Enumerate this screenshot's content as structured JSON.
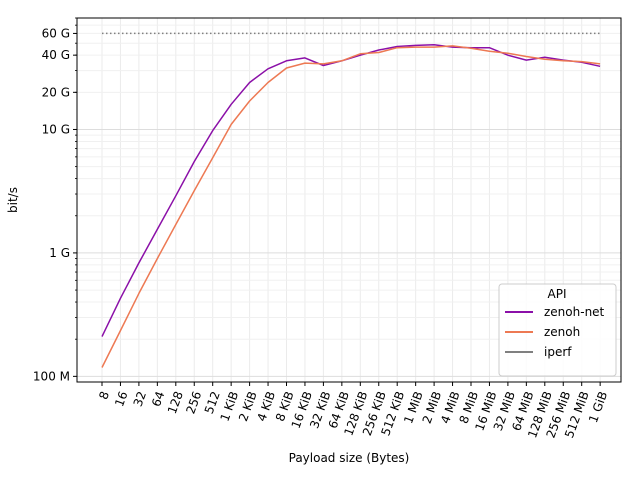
{
  "chart_data": {
    "type": "line",
    "xlabel": "Payload size (Bytes)",
    "ylabel": "bit/s",
    "yscale": "log",
    "ylim": [
      90000000,
      80000000000
    ],
    "grid": true,
    "legend_position": "lower-right",
    "legend_title": "API",
    "categories": [
      "8",
      "16",
      "32",
      "64",
      "128",
      "256",
      "512",
      "1 KiB",
      "2 KiB",
      "4 KiB",
      "8 KiB",
      "16 KiB",
      "32 KiB",
      "64 KiB",
      "128 KiB",
      "256 KiB",
      "512 KiB",
      "1 MiB",
      "2 MiB",
      "4 MiB",
      "8 MiB",
      "16 MiB",
      "32 MiB",
      "64 MiB",
      "128 MiB",
      "256 MiB",
      "512 MiB",
      "1 GiB"
    ],
    "y_ticks": [
      {
        "value": 100000000,
        "label": "100 M"
      },
      {
        "value": 1000000000,
        "label": "1 G"
      },
      {
        "value": 10000000000,
        "label": "10 G"
      },
      {
        "value": 20000000000,
        "label": "20 G"
      },
      {
        "value": 40000000000,
        "label": "40 G"
      },
      {
        "value": 60000000000,
        "label": "60 G"
      }
    ],
    "series": [
      {
        "name": "zenoh-net",
        "color": "#8b10a8",
        "style": "solid",
        "values": [
          210000000,
          430000000,
          830000000,
          1550000000,
          2900000000,
          5500000000,
          9800000000,
          16000000000,
          24000000000,
          31000000000,
          36000000000,
          38000000000,
          33000000000,
          36000000000,
          40000000000,
          44000000000,
          47000000000,
          48000000000,
          48500000000,
          46500000000,
          46000000000,
          46000000000,
          40000000000,
          36500000000,
          38500000000,
          36500000000,
          35000000000,
          32500000000
        ]
      },
      {
        "name": "zenoh",
        "color": "#ed7953",
        "style": "solid",
        "values": [
          118000000,
          235000000,
          470000000,
          900000000,
          1700000000,
          3200000000,
          5900000000,
          11000000000,
          17000000000,
          24000000000,
          31500000000,
          34500000000,
          34000000000,
          36000000000,
          41000000000,
          42000000000,
          46000000000,
          46500000000,
          46500000000,
          47500000000,
          45500000000,
          43000000000,
          41500000000,
          39000000000,
          37000000000,
          36000000000,
          35500000000,
          34000000000
        ]
      },
      {
        "name": "iperf",
        "color": "#808080",
        "style": "dotted",
        "values": [
          60000000000,
          60000000000,
          60000000000,
          60000000000,
          60000000000,
          60000000000,
          60000000000,
          60000000000,
          60000000000,
          60000000000,
          60000000000,
          60000000000,
          60000000000,
          60000000000,
          60000000000,
          60000000000,
          60000000000,
          60000000000,
          60000000000,
          60000000000,
          60000000000,
          60000000000,
          60000000000,
          60000000000,
          60000000000,
          60000000000,
          60000000000,
          60000000000
        ]
      }
    ]
  }
}
